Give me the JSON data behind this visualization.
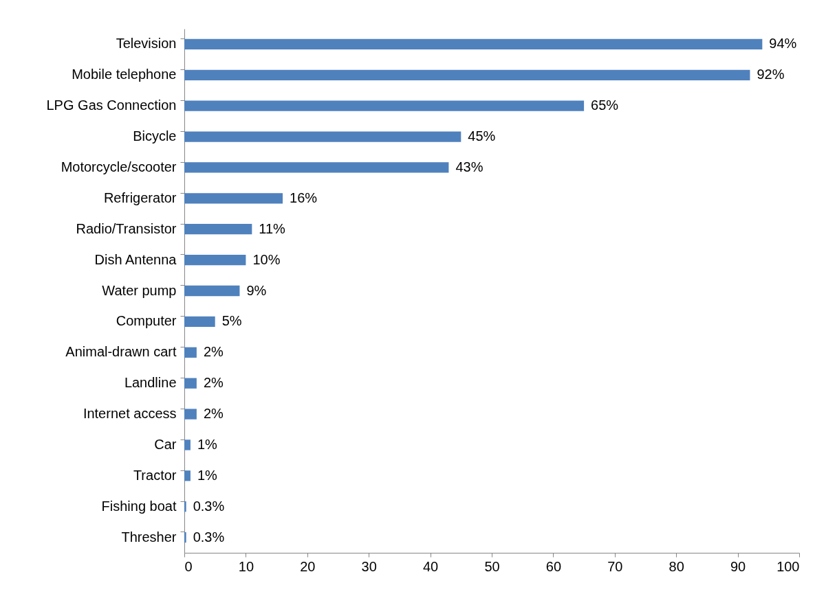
{
  "chart_data": {
    "type": "bar",
    "orientation": "horizontal",
    "categories": [
      "Television",
      "Mobile telephone",
      "LPG Gas Connection",
      "Bicycle",
      "Motorcycle/scooter",
      "Refrigerator",
      "Radio/Transistor",
      "Dish Antenna",
      "Water pump",
      "Computer",
      "Animal-drawn cart",
      "Landline",
      "Internet access",
      "Car",
      "Tractor",
      "Fishing boat",
      "Thresher"
    ],
    "values": [
      94,
      92,
      65,
      45,
      43,
      16,
      11,
      10,
      9,
      5,
      2,
      2,
      2,
      1,
      1,
      0.3,
      0.3
    ],
    "value_labels": [
      "94%",
      "92%",
      "65%",
      "45%",
      "43%",
      "16%",
      "11%",
      "10%",
      "9%",
      "5%",
      "2%",
      "2%",
      "2%",
      "1%",
      "1%",
      "0.3%",
      "0.3%"
    ],
    "color": "#4f81bd",
    "xlim": [
      0,
      100
    ],
    "xticks": [
      0,
      10,
      20,
      30,
      40,
      50,
      60,
      70,
      80,
      90,
      100
    ],
    "grid": false
  }
}
